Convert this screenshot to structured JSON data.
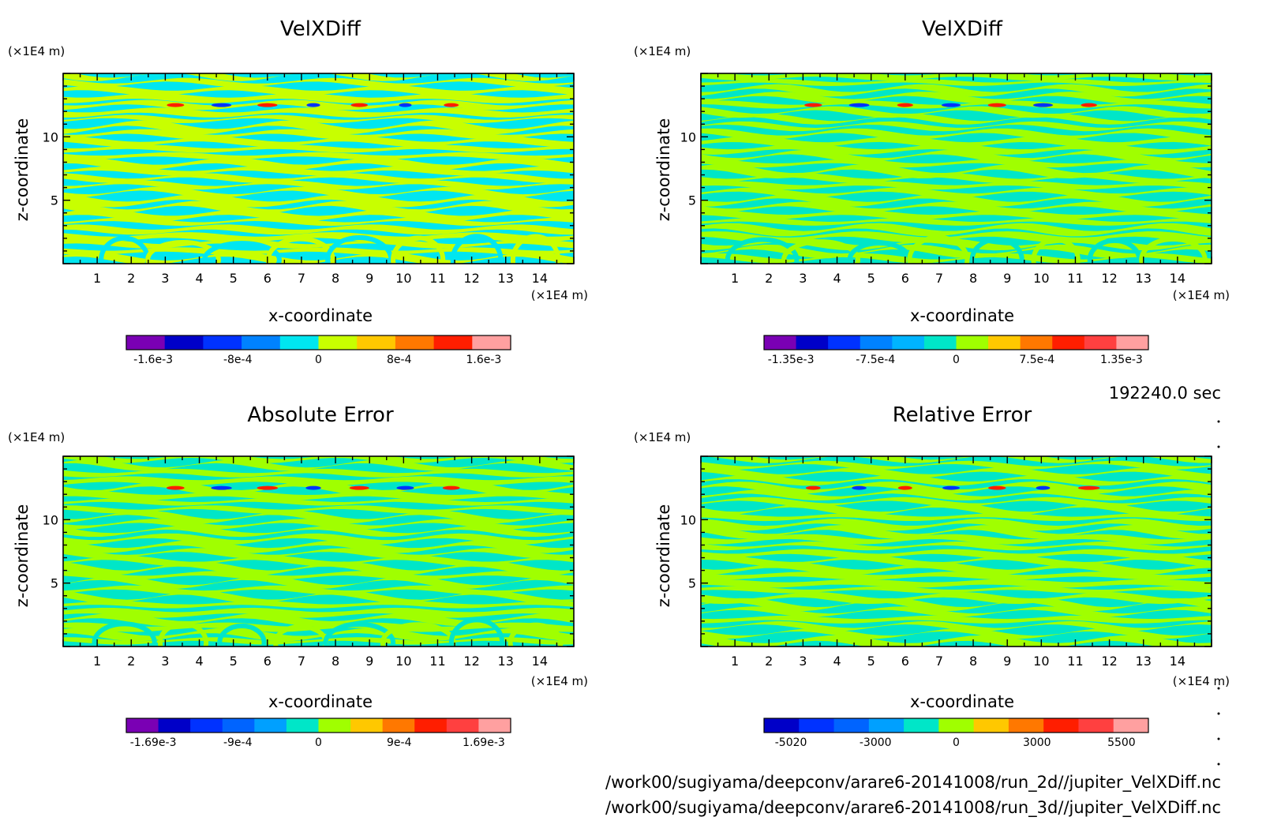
{
  "figure": {
    "time_label": "192240.0 sec",
    "file_paths": [
      "/work00/sugiyama/deepconv/arare6-20141008/run_2d//jupiter_VelXDiff.nc",
      "/work00/sugiyama/deepconv/arare6-20141008/run_3d//jupiter_VelXDiff.nc"
    ]
  },
  "chart_data": [
    {
      "type": "heatmap",
      "title": "VelXDiff",
      "xlabel": "x-coordinate",
      "ylabel": "z-coordinate",
      "x_unit": "(×1E4 m)",
      "y_unit": "(×1E4 m)",
      "xlim": [
        0,
        15
      ],
      "ylim": [
        0,
        15
      ],
      "x_ticks": [
        1,
        2,
        3,
        4,
        5,
        6,
        7,
        8,
        9,
        10,
        11,
        12,
        13,
        14
      ],
      "y_ticks": [
        5,
        10
      ],
      "colorbar": {
        "colors": [
          "#7a00b4",
          "#0000c8",
          "#0032ff",
          "#0082ff",
          "#00e6f0",
          "#c8ff00",
          "#ffc800",
          "#ff7800",
          "#ff1e00",
          "#ffa0a0"
        ],
        "tick_labels": [
          "-1.6e-3",
          "-8e-4",
          "0",
          "8e-4",
          "1.6e-3"
        ]
      },
      "field_colors": {
        "positive": "#c8ff00",
        "negative": "#00e6f0",
        "extreme_pos": "#ff1e00",
        "extreme_neg": "#0032ff"
      }
    },
    {
      "type": "heatmap",
      "title": "VelXDiff",
      "xlabel": "x-coordinate",
      "ylabel": "z-coordinate",
      "x_unit": "(×1E4 m)",
      "y_unit": "(×1E4 m)",
      "xlim": [
        0,
        15
      ],
      "ylim": [
        0,
        15
      ],
      "x_ticks": [
        1,
        2,
        3,
        4,
        5,
        6,
        7,
        8,
        9,
        10,
        11,
        12,
        13,
        14
      ],
      "y_ticks": [
        5,
        10
      ],
      "colorbar": {
        "colors": [
          "#7a00b4",
          "#0000c8",
          "#0032ff",
          "#0082ff",
          "#00b4ff",
          "#00e6c8",
          "#a0ff00",
          "#ffc800",
          "#ff7800",
          "#ff1e00",
          "#ff4040",
          "#ffa0a0"
        ],
        "tick_labels": [
          "-1.35e-3",
          "-7.5e-4",
          "0",
          "7.5e-4",
          "1.35e-3"
        ]
      },
      "field_colors": {
        "positive": "#a0ff00",
        "negative": "#00e6c8",
        "extreme_pos": "#ff1e00",
        "extreme_neg": "#0032ff"
      }
    },
    {
      "type": "heatmap",
      "title": "Absolute Error",
      "xlabel": "x-coordinate",
      "ylabel": "z-coordinate",
      "x_unit": "(×1E4 m)",
      "y_unit": "(×1E4 m)",
      "xlim": [
        0,
        15
      ],
      "ylim": [
        0,
        15
      ],
      "x_ticks": [
        1,
        2,
        3,
        4,
        5,
        6,
        7,
        8,
        9,
        10,
        11,
        12,
        13,
        14
      ],
      "y_ticks": [
        5,
        10
      ],
      "colorbar": {
        "colors": [
          "#7a00b4",
          "#0000c8",
          "#0032ff",
          "#0064ff",
          "#00a0ff",
          "#00e6c8",
          "#a0ff00",
          "#ffc800",
          "#ff7800",
          "#ff1e00",
          "#ff4040",
          "#ffa0a0"
        ],
        "tick_labels": [
          "-1.69e-3",
          "-9e-4",
          "0",
          "9e-4",
          "1.69e-3"
        ]
      },
      "field_colors": {
        "positive": "#a0ff00",
        "negative": "#00e6c8",
        "extreme_pos": "#ff1e00",
        "extreme_neg": "#0032ff"
      }
    },
    {
      "type": "heatmap",
      "title": "Relative Error",
      "xlabel": "x-coordinate",
      "ylabel": "z-coordinate",
      "x_unit": "(×1E4 m)",
      "y_unit": "(×1E4 m)",
      "xlim": [
        0,
        15
      ],
      "ylim": [
        0,
        15
      ],
      "x_ticks": [
        1,
        2,
        3,
        4,
        5,
        6,
        7,
        8,
        9,
        10,
        11,
        12,
        13,
        14
      ],
      "y_ticks": [
        5,
        10
      ],
      "colorbar": {
        "colors": [
          "#0000c8",
          "#0032ff",
          "#0064ff",
          "#00a0ff",
          "#00e6c8",
          "#a0ff00",
          "#ffc800",
          "#ff7800",
          "#ff1e00",
          "#ff4040",
          "#ffa0a0"
        ],
        "tick_labels": [
          "-5020",
          "-3000",
          "0",
          "3000",
          "5500"
        ]
      },
      "field_colors": {
        "positive": "#a0ff00",
        "negative": "#00e6c8",
        "extreme_pos": "#ff1e00",
        "extreme_neg": "#0032ff"
      }
    }
  ]
}
